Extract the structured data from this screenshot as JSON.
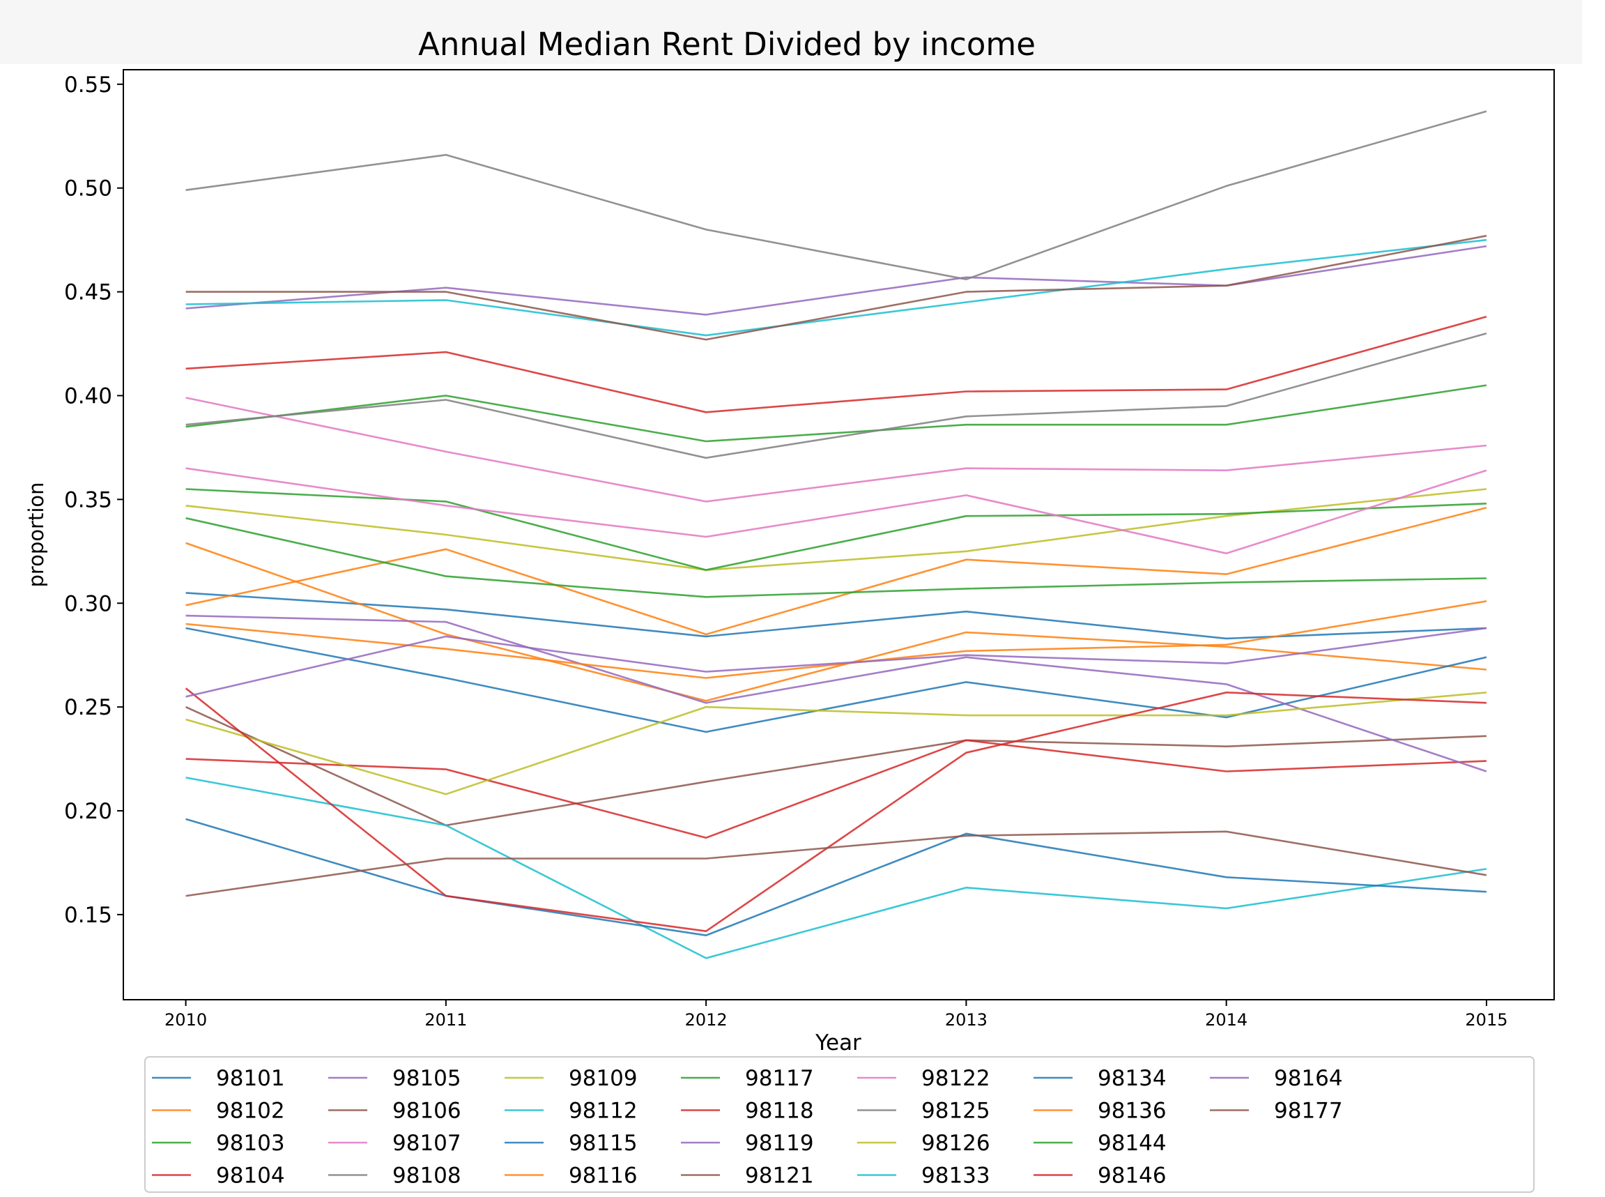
{
  "chart_data": {
    "type": "line",
    "title": "Annual Median Rent Divided by income",
    "xlabel": "Year",
    "ylabel": "proportion",
    "x": [
      2010,
      2011,
      2012,
      2013,
      2014,
      2015
    ],
    "xlim": [
      2009.76,
      2015.26
    ],
    "ylim": [
      0.109,
      0.557
    ],
    "yticks": [
      "0.15",
      "0.20",
      "0.25",
      "0.30",
      "0.35",
      "0.40",
      "0.45",
      "0.50",
      "0.55"
    ],
    "xticks": [
      "2010",
      "2011",
      "2012",
      "2013",
      "2014",
      "2015"
    ],
    "grid": false,
    "legend": "bottom, 8 columns",
    "series": [
      {
        "name": "98101",
        "color": "#1f77b4",
        "values": [
          0.305,
          0.297,
          0.284,
          0.296,
          0.283,
          0.288
        ]
      },
      {
        "name": "98102",
        "color": "#ff7f0e",
        "values": [
          0.329,
          0.285,
          0.253,
          0.286,
          0.279,
          0.268
        ]
      },
      {
        "name": "98103",
        "color": "#2ca02c",
        "values": [
          0.385,
          0.4,
          0.378,
          0.386,
          0.386,
          0.405
        ]
      },
      {
        "name": "98104",
        "color": "#d62728",
        "values": [
          0.413,
          0.421,
          0.392,
          0.402,
          0.403,
          0.438
        ]
      },
      {
        "name": "98105",
        "color": "#9467bd",
        "values": [
          0.442,
          0.452,
          0.439,
          0.457,
          0.453,
          0.472
        ]
      },
      {
        "name": "98106",
        "color": "#8c564b",
        "values": [
          0.25,
          0.193,
          0.214,
          0.234,
          0.231,
          0.236
        ]
      },
      {
        "name": "98107",
        "color": "#e377c2",
        "values": [
          0.399,
          0.373,
          0.349,
          0.365,
          0.364,
          0.376
        ]
      },
      {
        "name": "98108",
        "color": "#7f7f7f",
        "values": [
          0.386,
          0.398,
          0.37,
          0.39,
          0.395,
          0.43
        ]
      },
      {
        "name": "98109",
        "color": "#bcbd22",
        "values": [
          0.347,
          0.333,
          0.316,
          0.325,
          0.342,
          0.355
        ]
      },
      {
        "name": "98112",
        "color": "#17becf",
        "values": [
          0.444,
          0.446,
          0.429,
          0.445,
          0.461,
          0.475
        ]
      },
      {
        "name": "98115",
        "color": "#1f77b4",
        "values": [
          0.288,
          0.264,
          0.238,
          0.262,
          0.245,
          0.274
        ]
      },
      {
        "name": "98116",
        "color": "#ff7f0e",
        "values": [
          0.299,
          0.326,
          0.285,
          0.321,
          0.314,
          0.346
        ]
      },
      {
        "name": "98117",
        "color": "#2ca02c",
        "values": [
          0.355,
          0.349,
          0.316,
          0.342,
          0.343,
          0.348
        ]
      },
      {
        "name": "98118",
        "color": "#d62728",
        "values": [
          0.225,
          0.22,
          0.187,
          0.234,
          0.219,
          0.224
        ]
      },
      {
        "name": "98119",
        "color": "#9467bd",
        "values": [
          0.294,
          0.291,
          0.252,
          0.274,
          0.261,
          0.219
        ]
      },
      {
        "name": "98121",
        "color": "#8c564b",
        "values": [
          0.45,
          0.45,
          0.427,
          0.45,
          0.453,
          0.477
        ]
      },
      {
        "name": "98122",
        "color": "#e377c2",
        "values": [
          0.365,
          0.347,
          0.332,
          0.352,
          0.324,
          0.364
        ]
      },
      {
        "name": "98125",
        "color": "#7f7f7f",
        "values": [
          0.499,
          0.516,
          0.48,
          0.456,
          0.501,
          0.537
        ]
      },
      {
        "name": "98126",
        "color": "#bcbd22",
        "values": [
          0.244,
          0.208,
          0.25,
          0.246,
          0.246,
          0.257
        ]
      },
      {
        "name": "98133",
        "color": "#17becf",
        "values": [
          0.216,
          0.193,
          0.129,
          0.163,
          0.153,
          0.172
        ]
      },
      {
        "name": "98134",
        "color": "#1f77b4",
        "values": [
          0.196,
          0.159,
          0.14,
          0.189,
          0.168,
          0.161
        ]
      },
      {
        "name": "98136",
        "color": "#ff7f0e",
        "values": [
          0.29,
          0.278,
          0.264,
          0.277,
          0.28,
          0.301
        ]
      },
      {
        "name": "98144",
        "color": "#2ca02c",
        "values": [
          0.341,
          0.313,
          0.303,
          0.307,
          0.31,
          0.312
        ]
      },
      {
        "name": "98146",
        "color": "#d62728",
        "values": [
          0.259,
          0.159,
          0.142,
          0.228,
          0.257,
          0.252
        ]
      },
      {
        "name": "98164",
        "color": "#9467bd",
        "values": [
          0.255,
          0.284,
          0.267,
          0.275,
          0.271,
          0.288
        ]
      },
      {
        "name": "98177",
        "color": "#8c564b",
        "values": [
          0.159,
          0.177,
          0.177,
          0.188,
          0.19,
          0.169
        ]
      }
    ]
  }
}
